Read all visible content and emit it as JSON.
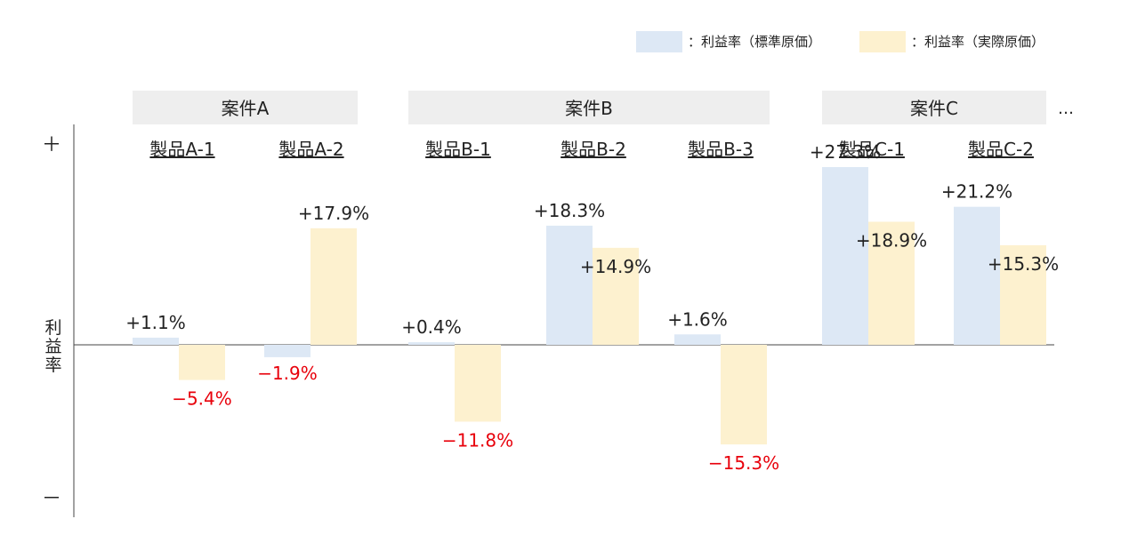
{
  "legend": [
    {
      "label": "：利益率（標準原価）",
      "color": "#dde8f5"
    },
    {
      "label": "：利益率（実際原価）",
      "color": "#fdf1cf"
    }
  ],
  "axis": {
    "top": "＋",
    "bottom": "－",
    "label": "利益率"
  },
  "groups": [
    {
      "label": "案件A",
      "products": [
        "製品A-1",
        "製品A-2"
      ]
    },
    {
      "label": "案件B",
      "products": [
        "製品B-1",
        "製品B-2",
        "製品B-3"
      ]
    },
    {
      "label": "案件C",
      "products": [
        "製品C-1",
        "製品C-2"
      ]
    }
  ],
  "more": "…",
  "colors": {
    "positive_label": "#222222",
    "negative_label": "#e8000b",
    "group_header": "#eeeeee",
    "axis": "#444444"
  },
  "chart_data": {
    "type": "bar",
    "categories": [
      "製品A-1",
      "製品A-2",
      "製品B-1",
      "製品B-2",
      "製品B-3",
      "製品C-1",
      "製品C-2"
    ],
    "series": [
      {
        "name": "：利益率（標準原価）",
        "values": [
          1.1,
          -1.9,
          0.4,
          18.3,
          1.6,
          27.3,
          21.2
        ]
      },
      {
        "name": "：利益率（実際原価）",
        "values": [
          -5.4,
          17.9,
          -11.8,
          14.9,
          -15.3,
          18.9,
          15.3
        ]
      }
    ],
    "labels": [
      [
        "+1.1%",
        "−1.9%",
        "+0.4%",
        "+18.3%",
        "+1.6%",
        "+27.3%",
        "+21.2%"
      ],
      [
        "−5.4%",
        "+17.9%",
        "−11.8%",
        "+14.9%",
        "−15.3%",
        "+18.9%",
        "+15.3%"
      ]
    ],
    "ylabel": "利益率",
    "ylim": [
      -20,
      30
    ]
  }
}
